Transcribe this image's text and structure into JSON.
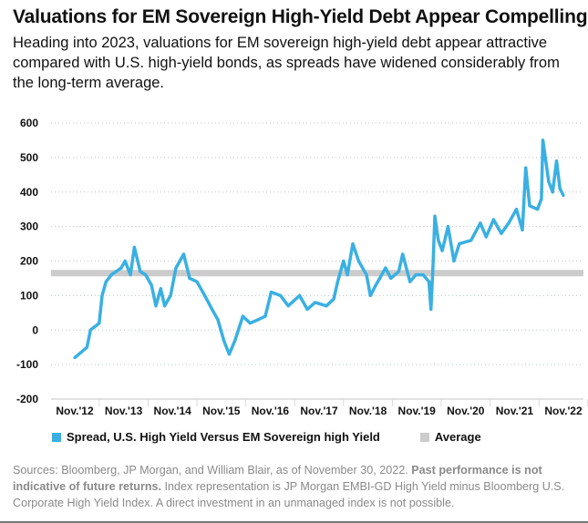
{
  "title": "Valuations for EM Sovereign High-Yield Debt Appear Compelling",
  "subtitle": "Heading into 2023, valuations for EM sovereign high-yield debt appear attractive compared with U.S. high-yield bonds, as spreads have widened considerably from the long-term average.",
  "chart_data": {
    "type": "line",
    "title": "",
    "xlabel": "",
    "ylabel": "",
    "ylim": [
      -200,
      600
    ],
    "yticks": [
      "600",
      "500",
      "400",
      "300",
      "200",
      "100",
      "0",
      "-100",
      "-200"
    ],
    "xticks": [
      "Nov.'12",
      "Nov.'13",
      "Nov.'14",
      "Nov.'15",
      "Nov.'16",
      "Nov.'17",
      "Nov.'18",
      "Nov.'19",
      "Nov.'20",
      "Nov.'21",
      "Nov.'22"
    ],
    "grid": "horizontal dotted",
    "legend_position": "bottom",
    "colors": {
      "spread": "#3ab0e2",
      "average": "#cccccc"
    },
    "series": [
      {
        "name": "Spread, U.S. High Yield Versus EM Sovereign high Yield",
        "x": [
          2012.92,
          2013.17,
          2013.24,
          2013.42,
          2013.48,
          2013.56,
          2013.67,
          2013.87,
          2013.95,
          2014.06,
          2014.14,
          2014.26,
          2014.37,
          2014.49,
          2014.58,
          2014.68,
          2014.76,
          2014.88,
          2014.99,
          2015.15,
          2015.27,
          2015.42,
          2015.58,
          2015.73,
          2015.85,
          2015.97,
          2016.08,
          2016.2,
          2016.36,
          2016.51,
          2016.67,
          2016.82,
          2016.94,
          2017.13,
          2017.29,
          2017.52,
          2017.68,
          2017.84,
          2018.07,
          2018.22,
          2018.3,
          2018.42,
          2018.5,
          2018.61,
          2018.73,
          2018.89,
          2018.97,
          2019.08,
          2019.28,
          2019.39,
          2019.55,
          2019.63,
          2019.78,
          2019.9,
          2020.05,
          2020.17,
          2020.21,
          2020.25,
          2020.29,
          2020.36,
          2020.44,
          2020.56,
          2020.68,
          2020.79,
          2021.03,
          2021.22,
          2021.34,
          2021.49,
          2021.65,
          2021.8,
          2021.96,
          2022.08,
          2022.15,
          2022.23,
          2022.39,
          2022.47,
          2022.5,
          2022.62,
          2022.7,
          2022.78,
          2022.85,
          2022.92
        ],
        "y": [
          -80,
          -50,
          0,
          20,
          100,
          140,
          160,
          180,
          200,
          160,
          240,
          170,
          160,
          130,
          70,
          120,
          70,
          100,
          180,
          220,
          150,
          140,
          100,
          60,
          30,
          -30,
          -70,
          -30,
          40,
          20,
          30,
          40,
          110,
          100,
          70,
          100,
          60,
          80,
          70,
          90,
          140,
          200,
          160,
          250,
          200,
          160,
          100,
          130,
          180,
          150,
          170,
          220,
          140,
          160,
          160,
          140,
          60,
          180,
          330,
          260,
          230,
          300,
          200,
          250,
          260,
          310,
          270,
          320,
          280,
          310,
          350,
          290,
          470,
          360,
          350,
          380,
          550,
          430,
          400,
          490,
          410,
          390
        ]
      },
      {
        "name": "Average",
        "value": 165
      }
    ]
  },
  "legend": {
    "spread": "Spread, U.S. High Yield Versus EM Sovereign high Yield",
    "average": "Average"
  },
  "footnote": {
    "part1": "Sources: Bloomberg, JP Morgan, and William Blair, as of November 30, 2022. ",
    "bold": "Past performance is not indicative of future returns.",
    "part2": " Index representation is JP Morgan EMBI-GD High Yield minus Bloomberg U.S. Corporate High Yield Index. A direct investment in an unmanaged index is not possible."
  }
}
